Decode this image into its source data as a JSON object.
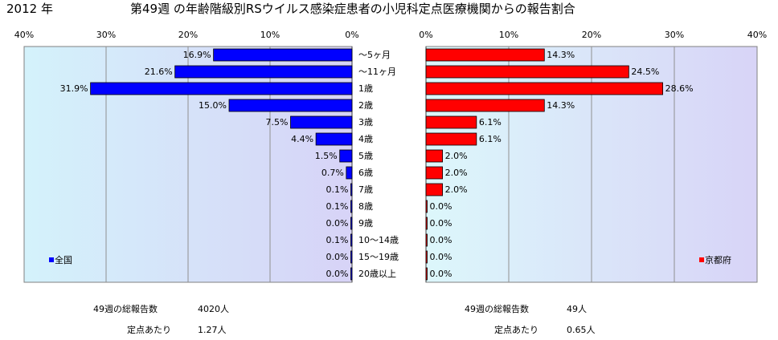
{
  "header": {
    "year_label": "2012 年",
    "title": "第49週 の年齢階級別RSウイルス感染症患者の小児科定点医療機関からの報告割合"
  },
  "chart_data": [
    {
      "type": "bar",
      "orientation": "horizontal",
      "direction": "right-to-left",
      "legend": "全国",
      "legend_position": "bottom-left",
      "color": "#0000ff",
      "plot_background": "gradient light-blue to lavender",
      "xlim": [
        0,
        40
      ],
      "x_ticks": [
        "40%",
        "30%",
        "20%",
        "10%",
        "0%"
      ],
      "grid": true,
      "categories": [
        "～5ヶ月",
        "～11ヶ月",
        "1歳",
        "2歳",
        "3歳",
        "4歳",
        "5歳",
        "6歳",
        "7歳",
        "8歳",
        "9歳",
        "10～14歳",
        "15～19歳",
        "20歳以上"
      ],
      "values": [
        16.9,
        21.6,
        31.9,
        15.0,
        7.5,
        4.4,
        1.5,
        0.7,
        0.1,
        0.1,
        0.0,
        0.1,
        0.0,
        0.0
      ],
      "labels": [
        "16.9%",
        "21.6%",
        "31.9%",
        "15.0%",
        "7.5%",
        "4.4%",
        "1.5%",
        "0.7%",
        "0.1%",
        "0.1%",
        "0.0%",
        "0.1%",
        "0.0%",
        "0.0%"
      ]
    },
    {
      "type": "bar",
      "orientation": "horizontal",
      "direction": "left-to-right",
      "legend": "京都府",
      "legend_position": "bottom-right",
      "color": "#ff0000",
      "plot_background": "gradient light-cyan to lavender",
      "xlim": [
        0,
        40
      ],
      "x_ticks": [
        "0%",
        "10%",
        "20%",
        "30%",
        "40%"
      ],
      "grid": true,
      "categories": [
        "～5ヶ月",
        "～11ヶ月",
        "1歳",
        "2歳",
        "3歳",
        "4歳",
        "5歳",
        "6歳",
        "7歳",
        "8歳",
        "9歳",
        "10～14歳",
        "15～19歳",
        "20歳以上"
      ],
      "values": [
        14.3,
        24.5,
        28.6,
        14.3,
        6.1,
        6.1,
        2.0,
        2.0,
        2.0,
        0.0,
        0.0,
        0.0,
        0.0,
        0.0
      ],
      "labels": [
        "14.3%",
        "24.5%",
        "28.6%",
        "14.3%",
        "6.1%",
        "6.1%",
        "2.0%",
        "2.0%",
        "2.0%",
        "0.0%",
        "0.0%",
        "0.0%",
        "0.0%",
        "0.0%"
      ]
    }
  ],
  "footer": {
    "national_reports_label": "49週の総報告数",
    "national_reports_value": "4020人",
    "national_per_site_label": "定点あたり",
    "national_per_site_value": "1.27人",
    "kyoto_reports_label": "49週の総報告数",
    "kyoto_reports_value": "49人",
    "kyoto_per_site_label": "定点あたり",
    "kyoto_per_site_value": "0.65人"
  }
}
